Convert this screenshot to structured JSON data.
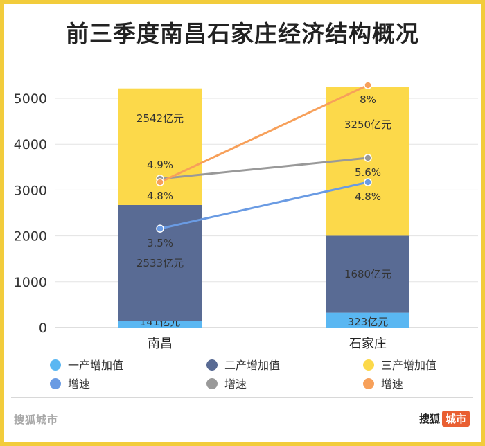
{
  "chart_data": {
    "type": "bar",
    "title": "前三季度南昌石家庄经济结构概况",
    "categories": [
      "南昌",
      "石家庄"
    ],
    "ylim": [
      0,
      5000
    ],
    "yticks": [
      0,
      1000,
      2000,
      3000,
      4000,
      5000
    ],
    "stacked": true,
    "bar_series": [
      {
        "name": "一产增加值",
        "color": "#5ab7f2",
        "values": [
          141,
          323
        ],
        "labels": [
          "141亿元",
          "323亿元"
        ]
      },
      {
        "name": "二产增加值",
        "color": "#596b94",
        "values": [
          2533,
          1680
        ],
        "labels": [
          "2533亿元",
          "1680亿元"
        ]
      },
      {
        "name": "三产增加值",
        "color": "#fcd94a",
        "values": [
          2542,
          3250
        ],
        "labels": [
          "2542亿元",
          "3250亿元"
        ]
      }
    ],
    "line_series": [
      {
        "name": "增速",
        "color": "#6a9be3",
        "labels": [
          "3.5%",
          "4.8%"
        ],
        "values": [
          3.5,
          4.8
        ]
      },
      {
        "name": "增速",
        "color": "#999999",
        "labels": [
          "4.9%",
          "5.6%"
        ],
        "values": [
          4.9,
          5.6
        ]
      },
      {
        "name": "增速",
        "color": "#f7a05a",
        "labels": [
          "4.8%",
          "8%"
        ],
        "values": [
          4.8,
          8
        ]
      }
    ],
    "legend_position": "bottom",
    "grid": true
  },
  "branding": {
    "left": "搜狐城市",
    "right_text": "搜狐",
    "right_tag": "城市"
  }
}
